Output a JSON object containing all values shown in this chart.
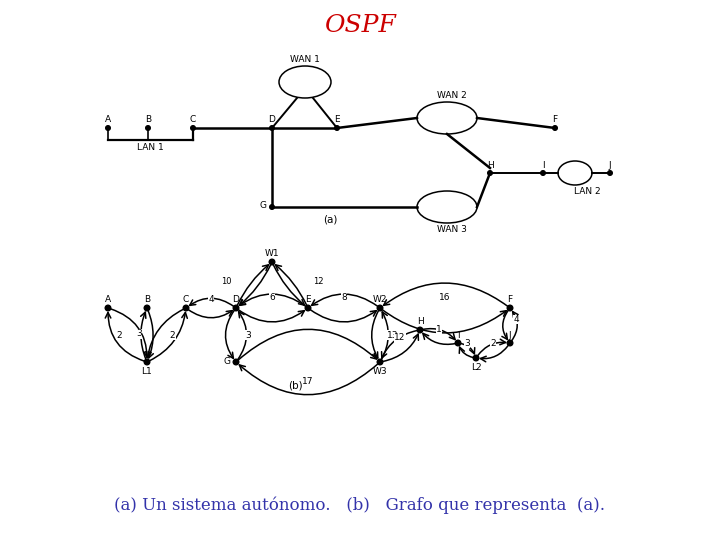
{
  "title": "OSPF",
  "title_color": "#cc0000",
  "title_fontsize": 18,
  "bg_color": "#ffffff",
  "caption_a": "(a)",
  "caption_b": " Un sistema autónomo.",
  "caption_c": "   (b)   ",
  "caption_d": "Grafo que representa",
  "caption_e": "  (a).",
  "caption_color_normal": "#3333aa",
  "caption_fontsize": 12
}
